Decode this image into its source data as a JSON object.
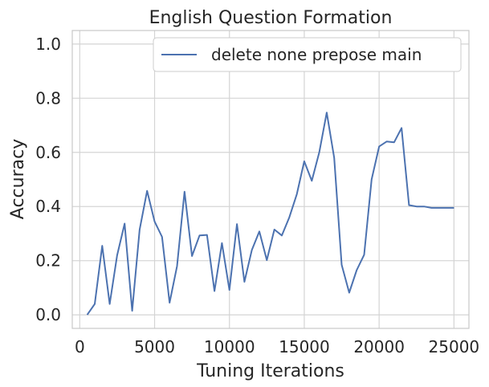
{
  "chart_data": {
    "type": "line",
    "title": "English Question Formation",
    "xlabel": "Tuning Iterations",
    "ylabel": "Accuracy",
    "xlim": [
      -500,
      26000
    ],
    "ylim": [
      -0.05,
      1.05
    ],
    "xticks": [
      0,
      5000,
      10000,
      15000,
      20000,
      25000
    ],
    "xtick_labels": [
      "0",
      "5000",
      "10000",
      "15000",
      "20000",
      "25000"
    ],
    "yticks": [
      0.0,
      0.2,
      0.4,
      0.6,
      0.8,
      1.0
    ],
    "ytick_labels": [
      "0.0",
      "0.2",
      "0.4",
      "0.6",
      "0.8",
      "1.0"
    ],
    "grid": true,
    "legend_position": "top-right",
    "colors": {
      "line": "#4c72b0",
      "grid": "#d4d4d4",
      "spine": "#c8c8c8"
    },
    "series": [
      {
        "name": "delete none prepose main",
        "x": [
          500,
          1000,
          1500,
          2000,
          2500,
          3000,
          3500,
          4000,
          4500,
          5000,
          5500,
          6000,
          6500,
          7000,
          7500,
          8000,
          8500,
          9000,
          9500,
          10000,
          10500,
          11000,
          11500,
          12000,
          12500,
          13000,
          13500,
          14000,
          14500,
          15000,
          15500,
          16000,
          16500,
          17000,
          17500,
          18000,
          18500,
          19000,
          19500,
          20000,
          20500,
          21000,
          21500,
          22000,
          22500,
          23000,
          23500,
          24000,
          24500,
          25000
        ],
        "y": [
          0.0,
          0.04,
          0.255,
          0.04,
          0.22,
          0.337,
          0.015,
          0.315,
          0.458,
          0.345,
          0.288,
          0.045,
          0.18,
          0.455,
          0.217,
          0.293,
          0.295,
          0.088,
          0.265,
          0.092,
          0.335,
          0.122,
          0.24,
          0.308,
          0.202,
          0.315,
          0.293,
          0.36,
          0.445,
          0.567,
          0.495,
          0.6,
          0.747,
          0.58,
          0.185,
          0.082,
          0.165,
          0.222,
          0.5,
          0.622,
          0.64,
          0.637,
          0.69,
          0.405,
          0.4,
          0.4,
          0.395,
          0.395,
          0.395,
          0.395
        ]
      }
    ]
  }
}
